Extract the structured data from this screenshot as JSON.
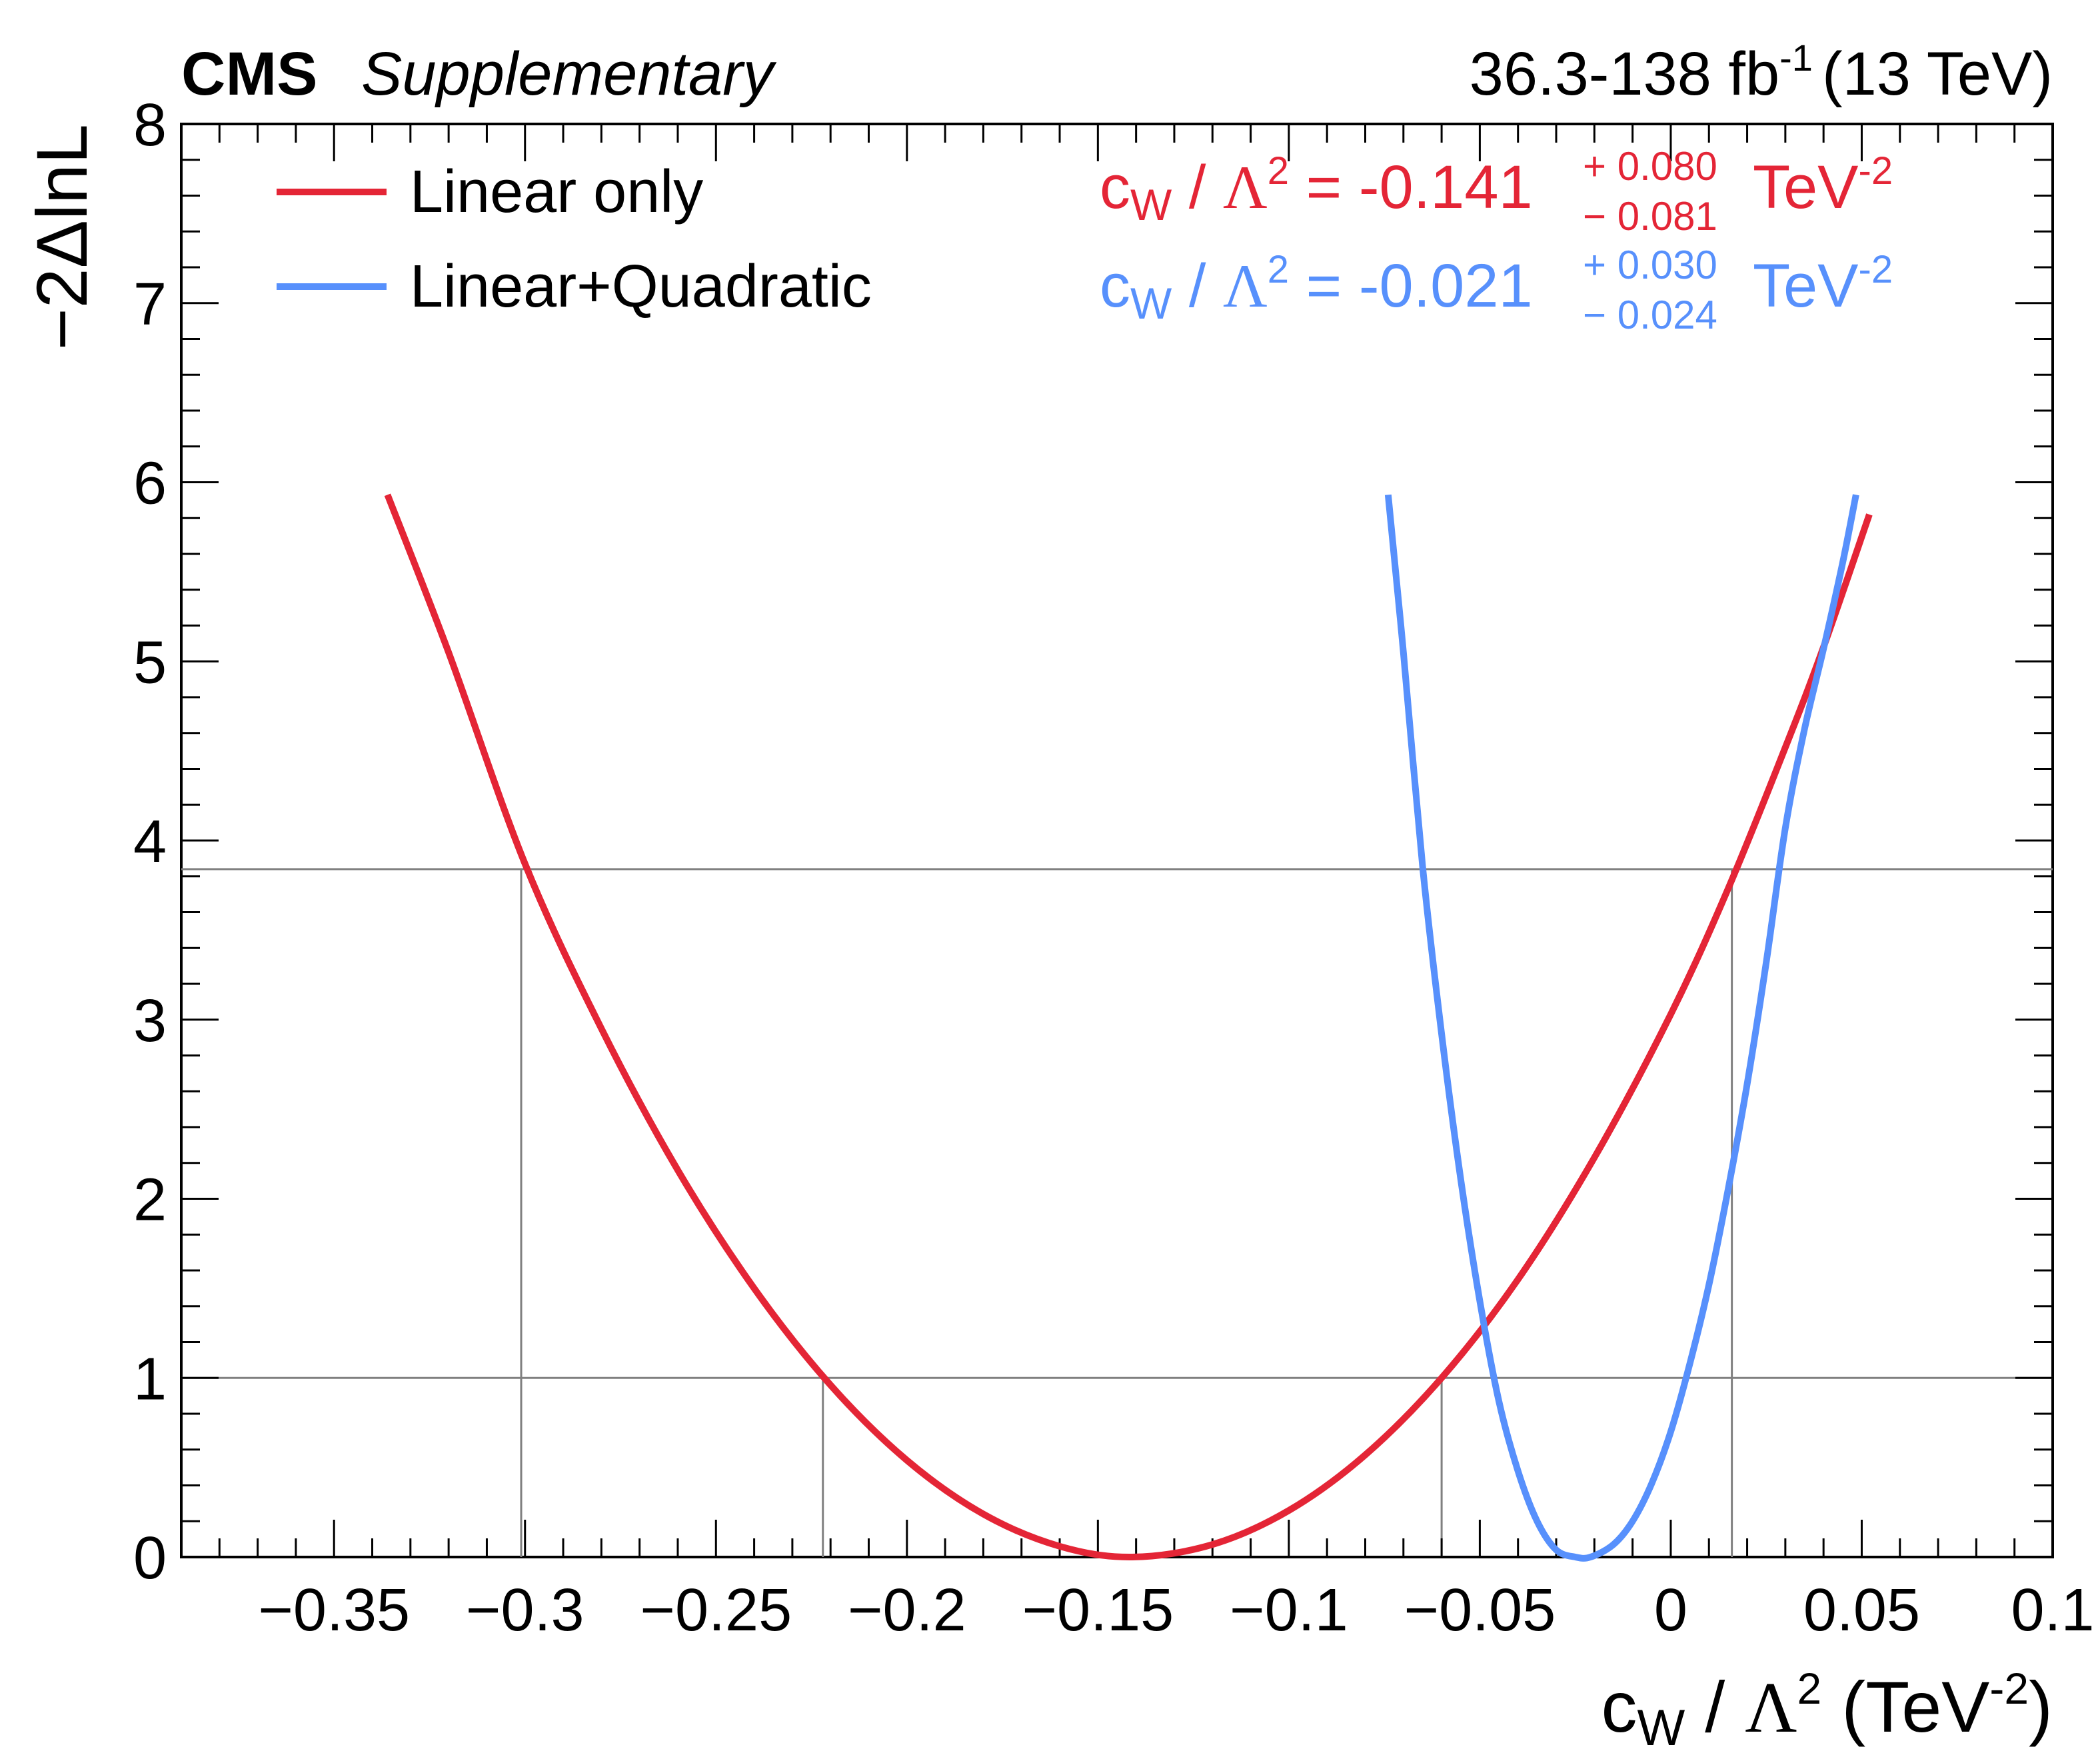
{
  "header": {
    "experiment": "CMS",
    "label": "Supplementary",
    "lumi_value": "36.3-138 fb",
    "lumi_exp": "-1",
    "energy": "(13 TeV)"
  },
  "legend": {
    "items": [
      "Linear only",
      "Linear+Quadratic"
    ]
  },
  "results": [
    {
      "c": "c",
      "sub": "W",
      "slash": " / ",
      "lambda": "Λ",
      "lexp": "2",
      "eq": " = -0.141",
      "up": "+ 0.080",
      "down": "− 0.081",
      "unit": "TeV",
      "uexp": "-2"
    },
    {
      "c": "c",
      "sub": "W",
      "slash": " / ",
      "lambda": "Λ",
      "lexp": "2",
      "eq": " = -0.021",
      "up": "+ 0.030",
      "down": "− 0.024",
      "unit": "TeV",
      "uexp": "-2"
    }
  ],
  "axes": {
    "ylabel": "−2ΔlnL",
    "xlabel": {
      "c": "c",
      "sub": "W",
      "slash": " / ",
      "lambda": "Λ",
      "lexp": "2",
      "unit_open": " (TeV",
      "uexp": "-2",
      "unit_close": ")"
    }
  },
  "chart_data": {
    "type": "line",
    "title": "",
    "xlabel": "c_W / Λ^2 (TeV^-2)",
    "ylabel": "−2ΔlnL",
    "xlim": [
      -0.39,
      0.1
    ],
    "ylim": [
      0,
      8
    ],
    "x_ticks": [
      -0.35,
      -0.3,
      -0.25,
      -0.2,
      -0.15,
      -0.1,
      -0.05,
      0,
      0.05,
      0.1
    ],
    "x_tick_labels": [
      "−0.35",
      "−0.3",
      "−0.25",
      "−0.2",
      "−0.15",
      "−0.1",
      "−0.05",
      "0",
      "0.05",
      "0.1"
    ],
    "y_ticks": [
      0,
      1,
      2,
      3,
      4,
      5,
      6,
      7,
      8
    ],
    "y_tick_labels": [
      "0",
      "1",
      "2",
      "3",
      "4",
      "5",
      "6",
      "7",
      "8"
    ],
    "series": [
      {
        "name": "Linear only",
        "color": "#e42536",
        "x": [
          -0.336,
          -0.32,
          -0.3,
          -0.28,
          -0.26,
          -0.24,
          -0.22,
          -0.2,
          -0.18,
          -0.16,
          -0.141,
          -0.12,
          -0.1,
          -0.08,
          -0.06,
          -0.04,
          -0.02,
          0,
          0.015,
          0.03,
          0.04,
          0.052
        ],
        "y": [
          5.93,
          5.05,
          3.87,
          2.95,
          2.16,
          1.5,
          0.96,
          0.54,
          0.24,
          0.06,
          0.0,
          0.07,
          0.26,
          0.57,
          1.0,
          1.55,
          2.23,
          3.03,
          3.73,
          4.52,
          5.08,
          5.82
        ]
      },
      {
        "name": "Linear+Quadratic",
        "color": "#5790fc",
        "x": [
          -0.074,
          -0.07,
          -0.065,
          -0.06,
          -0.055,
          -0.05,
          -0.045,
          -0.04,
          -0.035,
          -0.03,
          -0.025,
          -0.021,
          -0.015,
          -0.01,
          -0.005,
          0,
          0.005,
          0.01,
          0.015,
          0.02,
          0.025,
          0.03,
          0.035,
          0.04,
          0.045,
          0.0485
        ],
        "y": [
          5.93,
          5.05,
          3.86,
          2.92,
          2.11,
          1.43,
          0.87,
          0.48,
          0.2,
          0.04,
          0.0,
          0.0,
          0.07,
          0.2,
          0.41,
          0.7,
          1.08,
          1.52,
          2.05,
          2.64,
          3.32,
          4.07,
          4.62,
          5.07,
          5.55,
          5.93
        ]
      }
    ],
    "reference_lines": [
      {
        "type": "horizontal",
        "y": 1.0
      },
      {
        "type": "horizontal",
        "y": 3.84
      }
    ],
    "interval_markers": [
      -0.301,
      -0.222,
      -0.06,
      0.016
    ],
    "annotations": [
      "c_W / Λ^2 = -0.141 +0.080 −0.081 TeV^-2",
      "c_W / Λ^2 = -0.021 +0.030 −0.024 TeV^-2"
    ]
  }
}
